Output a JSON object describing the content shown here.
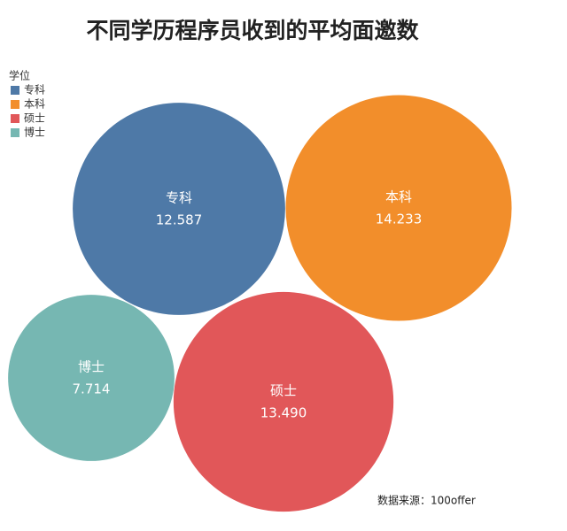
{
  "chart_data": {
    "type": "packed-bubble",
    "title": "不同学历程序员收到的平均面邀数",
    "legend_title": "学位",
    "categories": [
      "专科",
      "本科",
      "硕士",
      "博士"
    ],
    "values": [
      12.587,
      14.233,
      13.49,
      7.714
    ],
    "value_labels": [
      "12.587",
      "14.233",
      "13.490",
      "7.714"
    ],
    "colors": [
      "#4e79a7",
      "#f28e2b",
      "#e15759",
      "#76b7b2"
    ],
    "source": "数据来源：100offer"
  }
}
